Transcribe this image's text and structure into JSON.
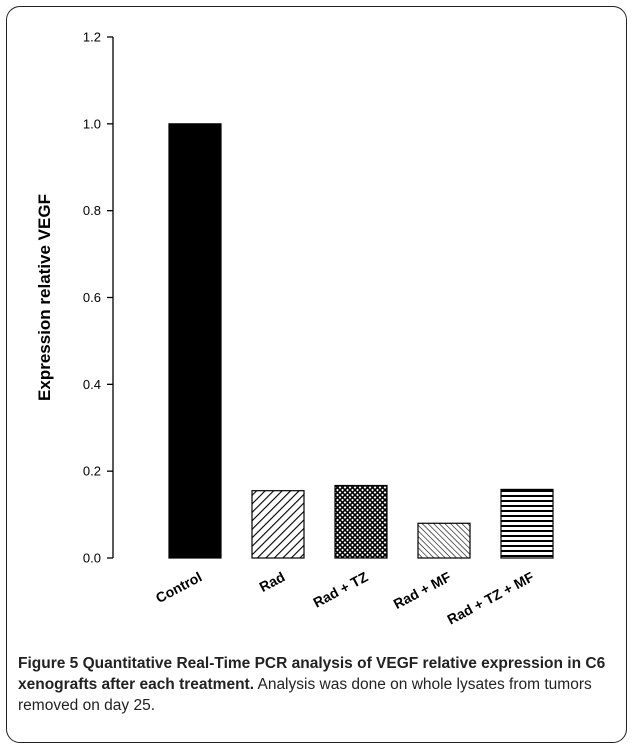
{
  "chart_data": {
    "type": "bar",
    "title": "",
    "xlabel": "",
    "ylabel": "Expression relative VEGF",
    "categories": [
      "Control",
      "Rad",
      "Rad + TZ",
      "Rad + MF",
      "Rad + TZ + MF"
    ],
    "values": [
      1.0,
      0.155,
      0.167,
      0.08,
      0.158
    ],
    "ylim": [
      0.0,
      1.2
    ],
    "yticks": [
      "0.0",
      "0.2",
      "0.4",
      "0.6",
      "0.8",
      "1.0",
      "1.2"
    ],
    "grid": false,
    "legend": "none",
    "bar_fills": [
      "solid-black",
      "diagonal-lines",
      "crosshatch",
      "fine-diagonal-lines",
      "horizontal-lines"
    ]
  },
  "caption": {
    "label": "Figure 5 Quantitative Real-Time PCR analysis of VEGF relative expression in C6 xenografts after each treatment.",
    "text": " Analysis was done on whole lysates from tumors removed on day 25."
  }
}
